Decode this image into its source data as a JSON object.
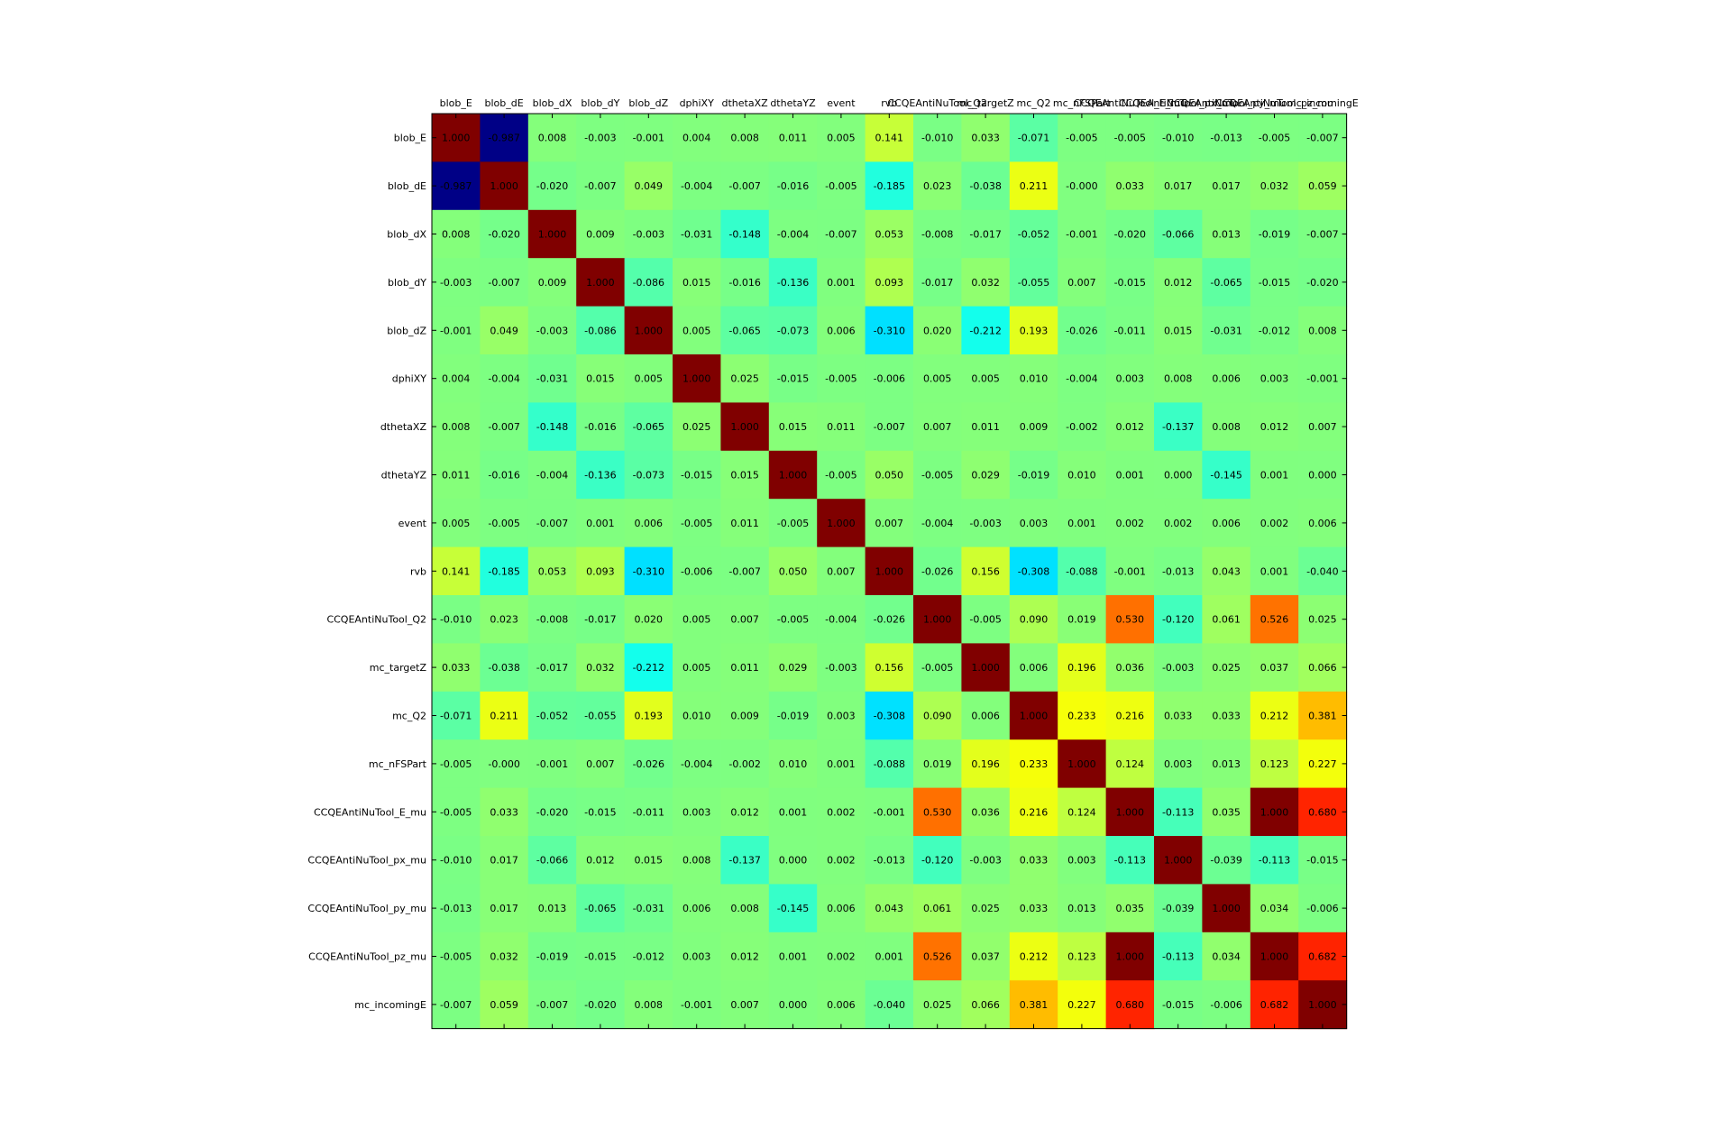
{
  "chart_data": {
    "type": "heatmap",
    "colormap": "jet",
    "value_range": [
      -1,
      1
    ],
    "value_format": "0.000",
    "x_tick_position": "top",
    "grid": false,
    "variables": [
      "blob_E",
      "blob_dE",
      "blob_dX",
      "blob_dY",
      "blob_dZ",
      "dphiXY",
      "dthetaXZ",
      "dthetaYZ",
      "event",
      "rvb",
      "CCQEAntiNuTool_Q2",
      "mc_targetZ",
      "mc_Q2",
      "mc_nFSPart",
      "CCQEAntiNuTool_E_mu",
      "CCQEAntiNuTool_px_mu",
      "CCQEAntiNuTool_py_mu",
      "CCQEAntiNuTool_pz_mu",
      "mc_incomingE"
    ],
    "values": [
      [
        1.0,
        -0.987,
        0.008,
        -0.003,
        -0.001,
        0.004,
        0.008,
        0.011,
        0.005,
        0.141,
        -0.01,
        0.033,
        -0.071,
        -0.005,
        -0.005,
        -0.01,
        -0.013,
        -0.005,
        -0.007
      ],
      [
        -0.987,
        1.0,
        -0.02,
        -0.007,
        0.049,
        -0.004,
        -0.007,
        -0.016,
        -0.005,
        -0.185,
        0.023,
        -0.038,
        0.211,
        -0.0,
        0.033,
        0.017,
        0.017,
        0.032,
        0.059
      ],
      [
        0.008,
        -0.02,
        1.0,
        0.009,
        -0.003,
        -0.031,
        -0.148,
        -0.004,
        -0.007,
        0.053,
        -0.008,
        -0.017,
        -0.052,
        -0.001,
        -0.02,
        -0.066,
        0.013,
        -0.019,
        -0.007
      ],
      [
        -0.003,
        -0.007,
        0.009,
        1.0,
        -0.086,
        0.015,
        -0.016,
        -0.136,
        0.001,
        0.093,
        -0.017,
        0.032,
        -0.055,
        0.007,
        -0.015,
        0.012,
        -0.065,
        -0.015,
        -0.02
      ],
      [
        -0.001,
        0.049,
        -0.003,
        -0.086,
        1.0,
        0.005,
        -0.065,
        -0.073,
        0.006,
        -0.31,
        0.02,
        -0.212,
        0.193,
        -0.026,
        -0.011,
        0.015,
        -0.031,
        -0.012,
        0.008
      ],
      [
        0.004,
        -0.004,
        -0.031,
        0.015,
        0.005,
        1.0,
        0.025,
        -0.015,
        -0.005,
        -0.006,
        0.005,
        0.005,
        0.01,
        -0.004,
        0.003,
        0.008,
        0.006,
        0.003,
        -0.001
      ],
      [
        0.008,
        -0.007,
        -0.148,
        -0.016,
        -0.065,
        0.025,
        1.0,
        0.015,
        0.011,
        -0.007,
        0.007,
        0.011,
        0.009,
        -0.002,
        0.012,
        -0.137,
        0.008,
        0.012,
        0.007
      ],
      [
        0.011,
        -0.016,
        -0.004,
        -0.136,
        -0.073,
        -0.015,
        0.015,
        1.0,
        -0.005,
        0.05,
        -0.005,
        0.029,
        -0.019,
        0.01,
        0.001,
        0.0,
        -0.145,
        0.001,
        0.0
      ],
      [
        0.005,
        -0.005,
        -0.007,
        0.001,
        0.006,
        -0.005,
        0.011,
        -0.005,
        1.0,
        0.007,
        -0.004,
        -0.003,
        0.003,
        0.001,
        0.002,
        0.002,
        0.006,
        0.002,
        0.006
      ],
      [
        0.141,
        -0.185,
        0.053,
        0.093,
        -0.31,
        -0.006,
        -0.007,
        0.05,
        0.007,
        1.0,
        -0.026,
        0.156,
        -0.308,
        -0.088,
        -0.001,
        -0.013,
        0.043,
        0.001,
        -0.04
      ],
      [
        -0.01,
        0.023,
        -0.008,
        -0.017,
        0.02,
        0.005,
        0.007,
        -0.005,
        -0.004,
        -0.026,
        1.0,
        -0.005,
        0.09,
        0.019,
        0.53,
        -0.12,
        0.061,
        0.526,
        0.025
      ],
      [
        0.033,
        -0.038,
        -0.017,
        0.032,
        -0.212,
        0.005,
        0.011,
        0.029,
        -0.003,
        0.156,
        -0.005,
        1.0,
        0.006,
        0.196,
        0.036,
        -0.003,
        0.025,
        0.037,
        0.066
      ],
      [
        -0.071,
        0.211,
        -0.052,
        -0.055,
        0.193,
        0.01,
        0.009,
        -0.019,
        0.003,
        -0.308,
        0.09,
        0.006,
        1.0,
        0.233,
        0.216,
        0.033,
        0.033,
        0.212,
        0.381
      ],
      [
        -0.005,
        -0.0,
        -0.001,
        0.007,
        -0.026,
        -0.004,
        -0.002,
        0.01,
        0.001,
        -0.088,
        0.019,
        0.196,
        0.233,
        1.0,
        0.124,
        0.003,
        0.013,
        0.123,
        0.227
      ],
      [
        -0.005,
        0.033,
        -0.02,
        -0.015,
        -0.011,
        0.003,
        0.012,
        0.001,
        0.002,
        -0.001,
        0.53,
        0.036,
        0.216,
        0.124,
        1.0,
        -0.113,
        0.035,
        1.0,
        0.68
      ],
      [
        -0.01,
        0.017,
        -0.066,
        0.012,
        0.015,
        0.008,
        -0.137,
        0.0,
        0.002,
        -0.013,
        -0.12,
        -0.003,
        0.033,
        0.003,
        -0.113,
        1.0,
        -0.039,
        -0.113,
        -0.015
      ],
      [
        -0.013,
        0.017,
        0.013,
        -0.065,
        -0.031,
        0.006,
        0.008,
        -0.145,
        0.006,
        0.043,
        0.061,
        0.025,
        0.033,
        0.013,
        0.035,
        -0.039,
        1.0,
        0.034,
        -0.006
      ],
      [
        -0.005,
        0.032,
        -0.019,
        -0.015,
        -0.012,
        0.003,
        0.012,
        0.001,
        0.002,
        0.001,
        0.526,
        0.037,
        0.212,
        0.123,
        1.0,
        -0.113,
        0.034,
        1.0,
        0.682
      ],
      [
        -0.007,
        0.059,
        -0.007,
        -0.02,
        0.008,
        -0.001,
        0.007,
        0.0,
        0.006,
        -0.04,
        0.025,
        0.066,
        0.381,
        0.227,
        0.68,
        -0.015,
        -0.006,
        0.682,
        1.0
      ]
    ]
  }
}
